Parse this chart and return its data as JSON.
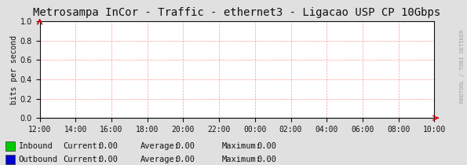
{
  "title": "Metrosampa InCor - Traffic - ethernet3 - Ligacao USP CP 10Gbps",
  "ylabel": "bits per second",
  "ylim": [
    0,
    1.0
  ],
  "yticks": [
    0.0,
    0.2,
    0.4,
    0.6,
    0.8,
    1.0
  ],
  "x_labels": [
    "12:00",
    "14:00",
    "16:00",
    "18:00",
    "20:00",
    "22:00",
    "00:00",
    "02:00",
    "04:00",
    "06:00",
    "08:00",
    "10:00"
  ],
  "bg_color": "#e0e0e0",
  "plot_bg_color": "#ffffff",
  "grid_color": "#ff9999",
  "title_color": "#111111",
  "axis_color": "#111111",
  "inbound_color": "#00cc00",
  "outbound_color": "#0000cc",
  "arrow_color": "#cc0000",
  "legend": [
    {
      "label": "Inbound",
      "color": "#00cc00",
      "current": "0.00",
      "average": "0.00",
      "maximum": "0.00"
    },
    {
      "label": "Outbound",
      "color": "#0000cc",
      "current": "0.00",
      "average": "0.00",
      "maximum": "0.00"
    }
  ],
  "watermark": "RRDTOOL / TOBI OETIKER",
  "title_fontsize": 10,
  "tick_fontsize": 7,
  "legend_fontsize": 7.5,
  "watermark_fontsize": 5
}
